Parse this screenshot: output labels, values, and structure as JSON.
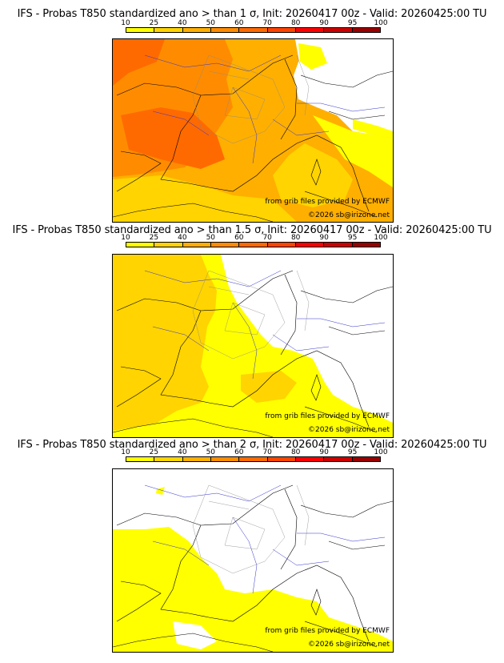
{
  "colorscale": {
    "ticks": [
      "10",
      "25",
      "40",
      "50",
      "60",
      "70",
      "80",
      "90",
      "95",
      "100"
    ],
    "colors": [
      "#ffff00",
      "#ffd400",
      "#ffaf00",
      "#ff8c00",
      "#ff6a00",
      "#ff4400",
      "#ff0000",
      "#cc0000",
      "#990000"
    ]
  },
  "panels": [
    {
      "title": "IFS - Probas T850  standardized ano > than 1 σ, Init: 20260417 00z - Valid: 20260425:00 TU",
      "credit1": "from grib files provided by ECMWF",
      "credit2": "©2026 sb@irizone.net"
    },
    {
      "title": "IFS - Probas T850  standardized ano > than 1.5 σ, Init: 20260417 00z - Valid: 20260425:00 TU",
      "credit1": "from grib files provided by ECMWF",
      "credit2": "©2026 sb@irizone.net"
    },
    {
      "title": "IFS - Probas T850  standardized ano > than 2 σ, Init: 20260417 00z - Valid: 20260425:00 TU",
      "credit1": "from grib files provided by ECMWF",
      "credit2": "©2026 sb@irizone.net"
    }
  ]
}
